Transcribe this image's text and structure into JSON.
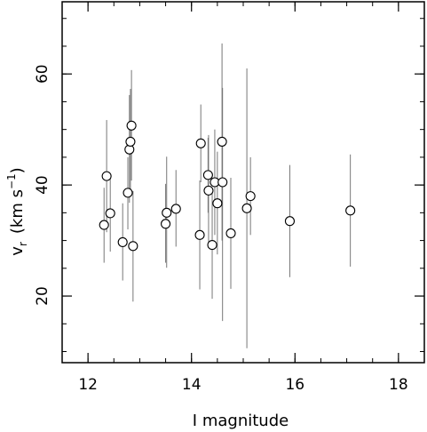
{
  "chart_data": {
    "type": "scatter",
    "title": "",
    "xlabel": "I magnitude",
    "ylabel_main": "v",
    "ylabel_sub": "r",
    "ylabel_units": "(km s",
    "ylabel_exp": "−1",
    "ylabel_close": ")",
    "xlim": [
      11.5,
      18.5
    ],
    "ylim": [
      8,
      73
    ],
    "xticks": [
      12,
      14,
      16,
      18
    ],
    "yticks": [
      20,
      40,
      60
    ],
    "xtick_labels": [
      "12",
      "14",
      "16",
      "18"
    ],
    "ytick_labels": [
      "20",
      "40",
      "60"
    ],
    "x_minor_step": 0.5,
    "y_minor_step": 5,
    "grid": false,
    "marker": "open-circle",
    "points": [
      {
        "x": 12.31,
        "y": 32.8,
        "ylo": 26.0,
        "yhi": 39.5
      },
      {
        "x": 12.36,
        "y": 41.6,
        "ylo": 31.5,
        "yhi": 51.7
      },
      {
        "x": 12.43,
        "y": 34.9,
        "ylo": 28.0,
        "yhi": 41.5
      },
      {
        "x": 12.67,
        "y": 29.7,
        "ylo": 22.8,
        "yhi": 36.7
      },
      {
        "x": 12.77,
        "y": 38.6,
        "ylo": 32.0,
        "yhi": 45.0
      },
      {
        "x": 12.8,
        "y": 46.4,
        "ylo": 36.8,
        "yhi": 56.2
      },
      {
        "x": 12.82,
        "y": 47.8,
        "ylo": 38.5,
        "yhi": 57.3
      },
      {
        "x": 12.84,
        "y": 50.7,
        "ylo": 40.8,
        "yhi": 60.7
      },
      {
        "x": 12.87,
        "y": 29.0,
        "ylo": 19.0,
        "yhi": 38.9
      },
      {
        "x": 13.5,
        "y": 33.0,
        "ylo": 26.0,
        "yhi": 40.2
      },
      {
        "x": 13.52,
        "y": 35.0,
        "ylo": 25.1,
        "yhi": 45.1
      },
      {
        "x": 13.7,
        "y": 35.7,
        "ylo": 28.9,
        "yhi": 42.7
      },
      {
        "x": 14.16,
        "y": 31.0,
        "ylo": 21.2,
        "yhi": 40.8
      },
      {
        "x": 14.18,
        "y": 47.5,
        "ylo": 40.5,
        "yhi": 54.5
      },
      {
        "x": 14.32,
        "y": 41.8,
        "ylo": 35.0,
        "yhi": 48.5
      },
      {
        "x": 14.33,
        "y": 39.0,
        "ylo": 29.0,
        "yhi": 49.0
      },
      {
        "x": 14.4,
        "y": 29.2,
        "ylo": 19.5,
        "yhi": 39.0
      },
      {
        "x": 14.45,
        "y": 40.5,
        "ylo": 31.0,
        "yhi": 50.0
      },
      {
        "x": 14.5,
        "y": 36.7,
        "ylo": 27.5,
        "yhi": 46.0
      },
      {
        "x": 14.59,
        "y": 47.8,
        "ylo": 30.0,
        "yhi": 65.5
      },
      {
        "x": 14.6,
        "y": 40.5,
        "ylo": 15.5,
        "yhi": 57.5
      },
      {
        "x": 14.76,
        "y": 31.3,
        "ylo": 21.3,
        "yhi": 41.3
      },
      {
        "x": 15.07,
        "y": 35.8,
        "ylo": 10.6,
        "yhi": 61.0
      },
      {
        "x": 15.14,
        "y": 38.0,
        "ylo": 31.0,
        "yhi": 45.0
      },
      {
        "x": 15.9,
        "y": 33.5,
        "ylo": 23.4,
        "yhi": 43.6
      },
      {
        "x": 17.07,
        "y": 35.4,
        "ylo": 25.3,
        "yhi": 45.5
      }
    ]
  }
}
